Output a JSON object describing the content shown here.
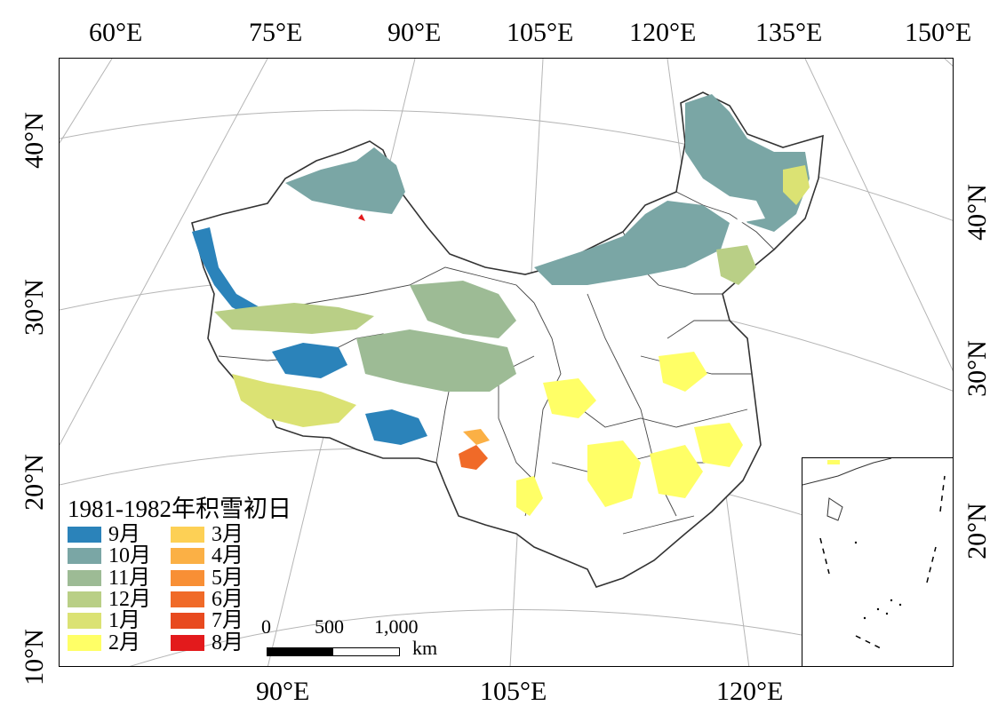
{
  "title": "1981-1982年积雪初日",
  "top_longitudes": [
    "60°E",
    "75°E",
    "90°E",
    "105°E",
    "120°E",
    "135°E",
    "150°E"
  ],
  "bottom_longitudes": [
    "90°E",
    "105°E",
    "120°E"
  ],
  "left_latitudes": [
    "40°N",
    "30°N",
    "20°N",
    "10°N"
  ],
  "right_latitudes": [
    "40°N",
    "30°N",
    "20°N"
  ],
  "legend": {
    "col1": [
      {
        "label": "9月",
        "color": "#2b83ba"
      },
      {
        "label": "10月",
        "color": "#7aa6a5"
      },
      {
        "label": "11月",
        "color": "#9dbb95"
      },
      {
        "label": "12月",
        "color": "#b9cf86"
      },
      {
        "label": "1月",
        "color": "#dbe273"
      },
      {
        "label": "2月",
        "color": "#ffff66"
      }
    ],
    "col2": [
      {
        "label": "3月",
        "color": "#fdd055"
      },
      {
        "label": "4月",
        "color": "#fbb045"
      },
      {
        "label": "5月",
        "color": "#f88f35"
      },
      {
        "label": "6月",
        "color": "#f06a28"
      },
      {
        "label": "7月",
        "color": "#e84a1f"
      },
      {
        "label": "8月",
        "color": "#e31a1c"
      }
    ]
  },
  "scale": {
    "ticks": [
      "0",
      "500",
      "1,000"
    ],
    "unit": "km"
  }
}
